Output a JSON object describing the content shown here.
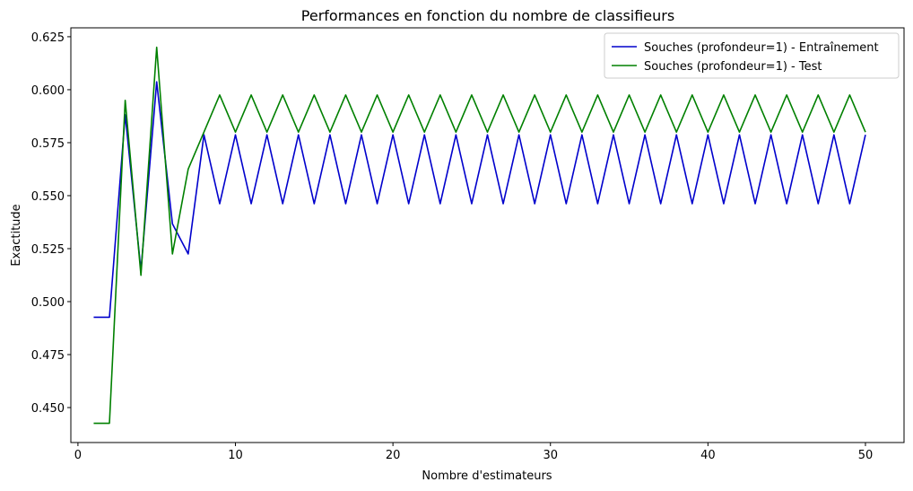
{
  "chart_data": {
    "type": "line",
    "title": "Performances en fonction du nombre de classifieurs",
    "xlabel": "Nombre d'estimateurs",
    "ylabel": "Exactitude",
    "xlim": [
      -0.45,
      52.45
    ],
    "ylim": [
      0.4335,
      0.6292
    ],
    "xticks": [
      0,
      10,
      20,
      30,
      40,
      50
    ],
    "yticks": [
      0.45,
      0.475,
      0.5,
      0.525,
      0.55,
      0.575,
      0.6,
      0.625
    ],
    "yticks_labels": [
      "0.450",
      "0.475",
      "0.500",
      "0.525",
      "0.550",
      "0.575",
      "0.600",
      "0.625"
    ],
    "grid": false,
    "legend_position": "top-right",
    "x": [
      1,
      2,
      3,
      4,
      5,
      6,
      7,
      8,
      9,
      10,
      11,
      12,
      13,
      14,
      15,
      16,
      17,
      18,
      19,
      20,
      21,
      22,
      23,
      24,
      25,
      26,
      27,
      28,
      29,
      30,
      31,
      32,
      33,
      34,
      35,
      36,
      37,
      38,
      39,
      40,
      41,
      42,
      43,
      44,
      45,
      46,
      47,
      48,
      49,
      50
    ],
    "series": [
      {
        "name": "Souches (profondeur=1) - Entraînement",
        "color": "#0000cc",
        "values": [
          0.4926,
          0.4926,
          0.5882,
          0.5147,
          0.6037,
          0.5367,
          0.5225,
          0.5787,
          0.5462,
          0.5787,
          0.5462,
          0.5787,
          0.5462,
          0.5787,
          0.5462,
          0.5787,
          0.5462,
          0.5787,
          0.5462,
          0.5787,
          0.5462,
          0.5787,
          0.5462,
          0.5787,
          0.5462,
          0.5787,
          0.5462,
          0.5787,
          0.5462,
          0.5787,
          0.5462,
          0.5787,
          0.5462,
          0.5787,
          0.5462,
          0.5787,
          0.5462,
          0.5787,
          0.5462,
          0.5787,
          0.5462,
          0.5787,
          0.5462,
          0.5787,
          0.5462,
          0.5787,
          0.5462,
          0.5787,
          0.5462,
          0.5787
        ]
      },
      {
        "name": "Souches (profondeur=1) - Test",
        "color": "#008000",
        "values": [
          0.4426,
          0.4426,
          0.595,
          0.5124,
          0.62,
          0.5225,
          0.5625,
          0.58,
          0.5975,
          0.58,
          0.5975,
          0.58,
          0.5975,
          0.58,
          0.5975,
          0.58,
          0.5975,
          0.58,
          0.5975,
          0.58,
          0.5975,
          0.58,
          0.5975,
          0.58,
          0.5975,
          0.58,
          0.5975,
          0.58,
          0.5975,
          0.58,
          0.5975,
          0.58,
          0.5975,
          0.58,
          0.5975,
          0.58,
          0.5975,
          0.58,
          0.5975,
          0.58,
          0.5975,
          0.58,
          0.5975,
          0.58,
          0.5975,
          0.58,
          0.5975,
          0.58,
          0.5975,
          0.58
        ]
      }
    ]
  }
}
